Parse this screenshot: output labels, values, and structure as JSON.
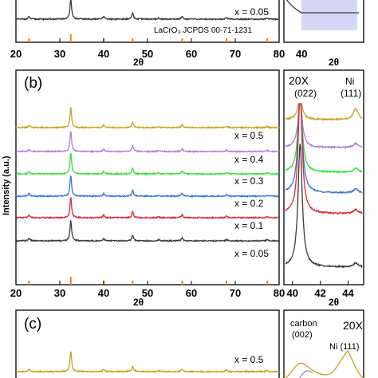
{
  "chart_data": [
    {
      "panel": "a",
      "type": "line",
      "xlabel": "2θ",
      "xlim": [
        20,
        80
      ],
      "xticks": [
        20,
        30,
        40,
        50,
        60,
        70,
        80
      ],
      "reference_label": "LaCrO₃ JCPDS 00-71-1231",
      "series": [
        {
          "name": "x = 0.05",
          "color": "#3a3a3a"
        }
      ],
      "inset": {
        "xlabel": "2θ",
        "xticks": [
          40
        ],
        "highlight_color": "#c9cdf2"
      }
    },
    {
      "panel": "b",
      "type": "line",
      "xlabel": "2θ",
      "ylabel": "Intensity (a.u.)",
      "xlim": [
        20,
        80
      ],
      "xticks": [
        20,
        30,
        40,
        50,
        60,
        70,
        80
      ],
      "reference_peaks": [
        23.0,
        32.5,
        40.0,
        46.6,
        57.9,
        68.0,
        77.3
      ],
      "series": [
        {
          "name": "x = 0.5",
          "color": "#c9a227"
        },
        {
          "name": "x = 0.4",
          "color": "#b07cd8"
        },
        {
          "name": "x = 0.3",
          "color": "#3ddc3d"
        },
        {
          "name": "x = 0.2",
          "color": "#3b76c8"
        },
        {
          "name": "x = 0.1",
          "color": "#d8293b"
        },
        {
          "name": "x = 0.05",
          "color": "#3a3a3a"
        }
      ],
      "peaks": [
        {
          "x": 23.0,
          "h": 0.12
        },
        {
          "x": 32.5,
          "h": 1.0
        },
        {
          "x": 40.0,
          "h": 0.12
        },
        {
          "x": 46.6,
          "h": 0.28
        },
        {
          "x": 52.5,
          "h": 0.05
        },
        {
          "x": 57.9,
          "h": 0.14
        },
        {
          "x": 68.0,
          "h": 0.07
        },
        {
          "x": 77.3,
          "h": 0.05
        }
      ],
      "inset": {
        "xlabel": "2θ",
        "xlim": [
          39.5,
          45
        ],
        "xticks": [
          40,
          42,
          44
        ],
        "magnification": "20X",
        "annotations": [
          {
            "text": "(022)",
            "x": 40.6
          },
          {
            "text": "Ni",
            "x": 44.5
          },
          {
            "text": "(111)",
            "x": 44.5
          }
        ]
      }
    },
    {
      "panel": "c",
      "type": "line",
      "series": [
        {
          "name": "x = 0.5",
          "color": "#c9a227"
        }
      ],
      "inset": {
        "magnification": "20X",
        "annotations": [
          {
            "text": "carbon"
          },
          {
            "text": "(002)"
          },
          {
            "text": "Ni (111)"
          }
        ]
      }
    }
  ],
  "panel_labels": {
    "b": "(b)",
    "c": "(c)"
  },
  "reference_color": "#e8831c"
}
